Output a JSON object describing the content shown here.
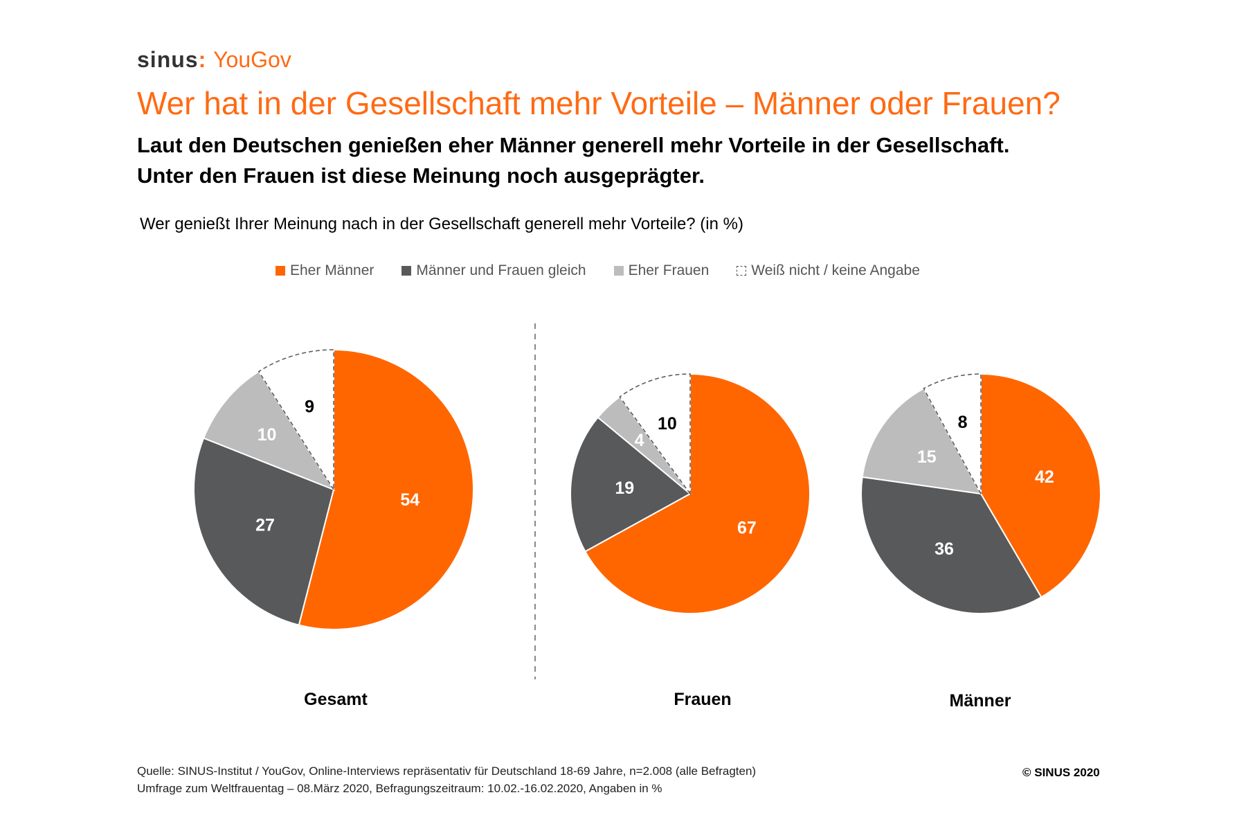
{
  "logo": {
    "part1": "sinus",
    "part2": "YouGov"
  },
  "title": "Wer hat in der Gesellschaft mehr Vorteile – Männer oder Frauen?",
  "subtitle": [
    "Laut den Deutschen genießen eher Männer generell mehr Vorteile in der Gesellschaft.",
    "Unter den Frauen ist diese Meinung noch ausgeprägter."
  ],
  "question": "Wer genießt Ihrer Meinung nach in der Gesellschaft generell mehr Vorteile? (in %)",
  "colors": {
    "eher_maenner": "#ff6600",
    "gleich": "#58595b",
    "eher_frauen": "#bcbcbc",
    "weiss_nicht": "#ffffff",
    "title": "#ff6a13"
  },
  "chart_data": {
    "type": "pie",
    "legend": [
      "Eher Männer",
      "Männer und Frauen gleich",
      "Eher Frauen",
      "Weiß nicht / keine Angabe"
    ],
    "legend_position": "top",
    "charts": [
      {
        "label": "Gesamt",
        "values": [
          54,
          27,
          10,
          9
        ]
      },
      {
        "label": "Frauen",
        "values": [
          67,
          19,
          4,
          10
        ]
      },
      {
        "label": "Männer",
        "values": [
          42,
          36,
          15,
          8
        ]
      }
    ]
  },
  "footer": {
    "source": "Quelle: SINUS-Institut / YouGov, Online-Interviews repräsentativ für Deutschland 18-69 Jahre, n=2.008 (alle Befragten)",
    "note": "Umfrage zum Weltfrauentag – 08.März 2020, Befragungszeitraum: 10.02.-16.02.2020, Angaben in %",
    "copyright": "© SINUS 2020"
  }
}
